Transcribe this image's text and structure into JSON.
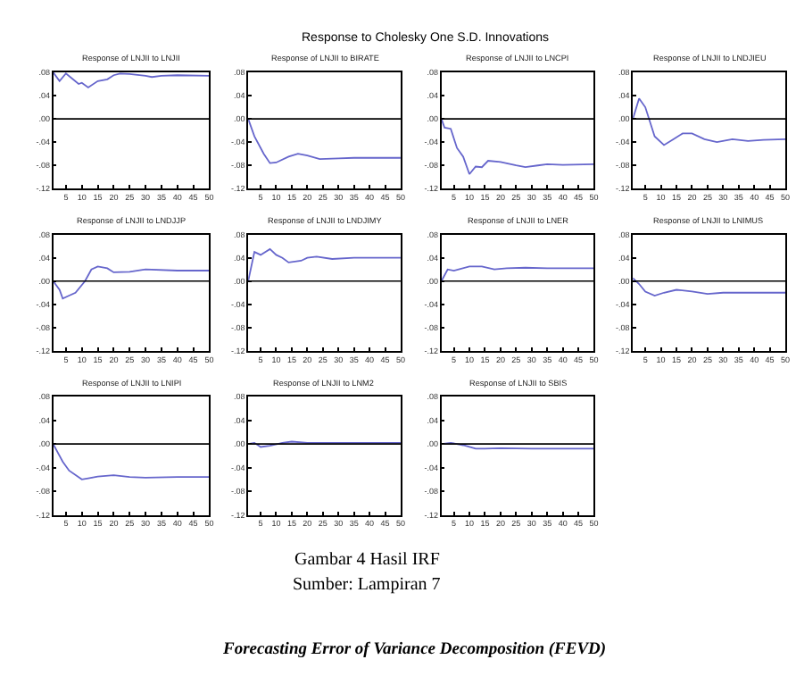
{
  "chart_data": [
    {
      "type": "other",
      "title": "Response to Cholesky One S.D. Innovations",
      "annotations": [
        "Gambar 4 Hasil IRF",
        "Sumber: Lampiran 7",
        "Forecasting Error of Variance Decomposition (FEVD)"
      ]
    },
    {
      "type": "line",
      "title": "Response of LNJII to LNJII",
      "series": [
        {
          "color": "#6666cc",
          "x": [
            1,
            3,
            5,
            9,
            10,
            12,
            15,
            18,
            20,
            22,
            25,
            30,
            32,
            35,
            40,
            50
          ],
          "values": [
            0.08,
            0.065,
            0.078,
            0.06,
            0.062,
            0.054,
            0.065,
            0.068,
            0.075,
            0.078,
            0.077,
            0.074,
            0.072,
            0.074,
            0.075,
            0.074
          ]
        }
      ],
      "xlim": [
        1,
        50
      ],
      "ylim": [
        -0.12,
        0.08
      ],
      "xticks": [
        5,
        10,
        15,
        20,
        25,
        30,
        35,
        40,
        45,
        50
      ],
      "yticks": [
        {
          "value": -0.12,
          "label": "-.12"
        },
        {
          "value": -0.08,
          "label": "-.08"
        },
        {
          "value": -0.04,
          "label": "-.04"
        },
        {
          "value": 0,
          "label": ".00"
        },
        {
          "value": 0.04,
          "label": ".04"
        },
        {
          "value": 0.08,
          "label": ".08"
        }
      ],
      "ref_lines": [
        {
          "axis": "y",
          "value": 0,
          "color": "#000000"
        }
      ],
      "grid": false,
      "marker": "none",
      "line_style": "solid"
    },
    {
      "type": "line",
      "title": "Response of LNJII to BIRATE",
      "series": [
        {
          "color": "#6666cc",
          "x": [
            1,
            3,
            6,
            8,
            10,
            14,
            17,
            20,
            24,
            30,
            35,
            50
          ],
          "values": [
            0,
            -0.03,
            -0.06,
            -0.076,
            -0.075,
            -0.065,
            -0.06,
            -0.063,
            -0.069,
            -0.068,
            -0.067,
            -0.067
          ]
        }
      ],
      "xlim": [
        1,
        50
      ],
      "ylim": [
        -0.12,
        0.08
      ],
      "xticks": [
        5,
        10,
        15,
        20,
        25,
        30,
        35,
        40,
        45,
        50
      ],
      "yticks": [
        {
          "value": -0.12,
          "label": "-.12"
        },
        {
          "value": -0.08,
          "label": "-.08"
        },
        {
          "value": -0.04,
          "label": "-.04"
        },
        {
          "value": 0,
          "label": ".00"
        },
        {
          "value": 0.04,
          "label": ".04"
        },
        {
          "value": 0.08,
          "label": ".08"
        }
      ],
      "ref_lines": [
        {
          "axis": "y",
          "value": 0,
          "color": "#000000"
        }
      ],
      "grid": false,
      "marker": "none",
      "line_style": "solid"
    },
    {
      "type": "line",
      "title": "Response of LNJII to LNCPI",
      "series": [
        {
          "color": "#6666cc",
          "x": [
            1,
            2,
            4,
            6,
            8,
            10,
            12,
            14,
            16,
            20,
            25,
            28,
            32,
            35,
            40,
            50
          ],
          "values": [
            0,
            -0.015,
            -0.017,
            -0.05,
            -0.065,
            -0.095,
            -0.082,
            -0.083,
            -0.072,
            -0.074,
            -0.08,
            -0.083,
            -0.08,
            -0.078,
            -0.079,
            -0.078
          ]
        }
      ],
      "xlim": [
        1,
        50
      ],
      "ylim": [
        -0.12,
        0.08
      ],
      "xticks": [
        5,
        10,
        15,
        20,
        25,
        30,
        35,
        40,
        45,
        50
      ],
      "yticks": [
        {
          "value": -0.12,
          "label": "-.12"
        },
        {
          "value": -0.08,
          "label": "-.08"
        },
        {
          "value": -0.04,
          "label": "-.04"
        },
        {
          "value": 0,
          "label": ".00"
        },
        {
          "value": 0.04,
          "label": ".04"
        },
        {
          "value": 0.08,
          "label": ".08"
        }
      ],
      "ref_lines": [
        {
          "axis": "y",
          "value": 0,
          "color": "#000000"
        }
      ],
      "grid": false,
      "marker": "none",
      "line_style": "solid"
    },
    {
      "type": "line",
      "title": "Response of LNJII to LNDJIEU",
      "series": [
        {
          "color": "#6666cc",
          "x": [
            1,
            3,
            5,
            8,
            11,
            14,
            17,
            20,
            24,
            28,
            33,
            38,
            43,
            50
          ],
          "values": [
            0,
            0.035,
            0.02,
            -0.03,
            -0.045,
            -0.035,
            -0.025,
            -0.025,
            -0.035,
            -0.04,
            -0.035,
            -0.038,
            -0.036,
            -0.035
          ]
        }
      ],
      "xlim": [
        1,
        50
      ],
      "ylim": [
        -0.12,
        0.08
      ],
      "xticks": [
        5,
        10,
        15,
        20,
        25,
        30,
        35,
        40,
        45,
        50
      ],
      "yticks": [
        {
          "value": -0.12,
          "label": "-.12"
        },
        {
          "value": -0.08,
          "label": "-.08"
        },
        {
          "value": -0.04,
          "label": "-.04"
        },
        {
          "value": 0,
          "label": ".00"
        },
        {
          "value": 0.04,
          "label": ".04"
        },
        {
          "value": 0.08,
          "label": ".08"
        }
      ],
      "ref_lines": [
        {
          "axis": "y",
          "value": 0,
          "color": "#000000"
        }
      ],
      "grid": false,
      "marker": "none",
      "line_style": "solid"
    },
    {
      "type": "line",
      "title": "Response of LNJII to LNDJJP",
      "series": [
        {
          "color": "#6666cc",
          "x": [
            1,
            3,
            4,
            6,
            8,
            11,
            13,
            15,
            18,
            20,
            25,
            30,
            40,
            50
          ],
          "values": [
            0,
            -0.015,
            -0.03,
            -0.025,
            -0.02,
            0,
            0.02,
            0.025,
            0.022,
            0.015,
            0.016,
            0.02,
            0.018,
            0.018
          ]
        }
      ],
      "xlim": [
        1,
        50
      ],
      "ylim": [
        -0.12,
        0.08
      ],
      "xticks": [
        5,
        10,
        15,
        20,
        25,
        30,
        35,
        40,
        45,
        50
      ],
      "yticks": [
        {
          "value": -0.12,
          "label": "-.12"
        },
        {
          "value": -0.08,
          "label": "-.08"
        },
        {
          "value": -0.04,
          "label": "-.04"
        },
        {
          "value": 0,
          "label": ".00"
        },
        {
          "value": 0.04,
          "label": ".04"
        },
        {
          "value": 0.08,
          "label": ".08"
        }
      ],
      "ref_lines": [
        {
          "axis": "y",
          "value": 0,
          "color": "#000000"
        }
      ],
      "grid": false,
      "marker": "none",
      "line_style": "solid"
    },
    {
      "type": "line",
      "title": "Response of LNJII to LNDJIMY",
      "series": [
        {
          "color": "#6666cc",
          "x": [
            1,
            3,
            5,
            8,
            10,
            12,
            14,
            18,
            20,
            23,
            28,
            35,
            50
          ],
          "values": [
            0,
            0.05,
            0.045,
            0.055,
            0.045,
            0.04,
            0.032,
            0.035,
            0.04,
            0.042,
            0.038,
            0.04,
            0.04
          ]
        }
      ],
      "xlim": [
        1,
        50
      ],
      "ylim": [
        -0.12,
        0.08
      ],
      "xticks": [
        5,
        10,
        15,
        20,
        25,
        30,
        35,
        40,
        45,
        50
      ],
      "yticks": [
        {
          "value": -0.12,
          "label": "-.12"
        },
        {
          "value": -0.08,
          "label": "-.08"
        },
        {
          "value": -0.04,
          "label": "-.04"
        },
        {
          "value": 0,
          "label": ".00"
        },
        {
          "value": 0.04,
          "label": ".04"
        },
        {
          "value": 0.08,
          "label": ".08"
        }
      ],
      "ref_lines": [
        {
          "axis": "y",
          "value": 0,
          "color": "#000000"
        }
      ],
      "grid": false,
      "marker": "none",
      "line_style": "solid"
    },
    {
      "type": "line",
      "title": "Response of LNJII to LNER",
      "series": [
        {
          "color": "#6666cc",
          "x": [
            1,
            3,
            5,
            10,
            14,
            18,
            22,
            28,
            35,
            50
          ],
          "values": [
            0,
            0.02,
            0.018,
            0.025,
            0.025,
            0.02,
            0.022,
            0.023,
            0.022,
            0.022
          ]
        }
      ],
      "xlim": [
        1,
        50
      ],
      "ylim": [
        -0.12,
        0.08
      ],
      "xticks": [
        5,
        10,
        15,
        20,
        25,
        30,
        35,
        40,
        45,
        50
      ],
      "yticks": [
        {
          "value": -0.12,
          "label": "-.12"
        },
        {
          "value": -0.08,
          "label": "-.08"
        },
        {
          "value": -0.04,
          "label": "-.04"
        },
        {
          "value": 0,
          "label": ".00"
        },
        {
          "value": 0.04,
          "label": ".04"
        },
        {
          "value": 0.08,
          "label": ".08"
        }
      ],
      "ref_lines": [
        {
          "axis": "y",
          "value": 0,
          "color": "#000000"
        }
      ],
      "grid": false,
      "marker": "none",
      "line_style": "solid"
    },
    {
      "type": "line",
      "title": "Response of LNJII to LNIMUS",
      "series": [
        {
          "color": "#6666cc",
          "x": [
            1,
            3,
            5,
            8,
            11,
            15,
            20,
            25,
            30,
            50
          ],
          "values": [
            0.005,
            -0.005,
            -0.018,
            -0.025,
            -0.02,
            -0.015,
            -0.018,
            -0.022,
            -0.02,
            -0.02
          ]
        }
      ],
      "xlim": [
        1,
        50
      ],
      "ylim": [
        -0.12,
        0.08
      ],
      "xticks": [
        5,
        10,
        15,
        20,
        25,
        30,
        35,
        40,
        45,
        50
      ],
      "yticks": [
        {
          "value": -0.12,
          "label": "-.12"
        },
        {
          "value": -0.08,
          "label": "-.08"
        },
        {
          "value": -0.04,
          "label": "-.04"
        },
        {
          "value": 0,
          "label": ".00"
        },
        {
          "value": 0.04,
          "label": ".04"
        },
        {
          "value": 0.08,
          "label": ".08"
        }
      ],
      "ref_lines": [
        {
          "axis": "y",
          "value": 0,
          "color": "#000000"
        }
      ],
      "grid": false,
      "marker": "none",
      "line_style": "solid"
    },
    {
      "type": "line",
      "title": "Response of LNJII to LNIPI",
      "series": [
        {
          "color": "#6666cc",
          "x": [
            1,
            4,
            6,
            10,
            12,
            15,
            20,
            25,
            30,
            40,
            50
          ],
          "values": [
            0,
            -0.03,
            -0.045,
            -0.06,
            -0.058,
            -0.055,
            -0.053,
            -0.056,
            -0.057,
            -0.056,
            -0.056
          ]
        }
      ],
      "xlim": [
        1,
        50
      ],
      "ylim": [
        -0.12,
        0.08
      ],
      "xticks": [
        5,
        10,
        15,
        20,
        25,
        30,
        35,
        40,
        45,
        50
      ],
      "yticks": [
        {
          "value": -0.12,
          "label": "-.12"
        },
        {
          "value": -0.08,
          "label": "-.08"
        },
        {
          "value": -0.04,
          "label": "-.04"
        },
        {
          "value": 0,
          "label": ".00"
        },
        {
          "value": 0.04,
          "label": ".04"
        },
        {
          "value": 0.08,
          "label": ".08"
        }
      ],
      "ref_lines": [
        {
          "axis": "y",
          "value": 0,
          "color": "#000000"
        }
      ],
      "grid": false,
      "marker": "none",
      "line_style": "solid"
    },
    {
      "type": "line",
      "title": "Response of LNJII to LNM2",
      "series": [
        {
          "color": "#6666cc",
          "x": [
            1,
            3,
            5,
            8,
            12,
            15,
            20,
            50
          ],
          "values": [
            0,
            0.002,
            -0.005,
            -0.003,
            0.002,
            0.004,
            0.002,
            0.002
          ]
        }
      ],
      "xlim": [
        1,
        50
      ],
      "ylim": [
        -0.12,
        0.08
      ],
      "xticks": [
        5,
        10,
        15,
        20,
        25,
        30,
        35,
        40,
        45,
        50
      ],
      "yticks": [
        {
          "value": -0.12,
          "label": "-.12"
        },
        {
          "value": -0.08,
          "label": "-.08"
        },
        {
          "value": -0.04,
          "label": "-.04"
        },
        {
          "value": 0,
          "label": ".00"
        },
        {
          "value": 0.04,
          "label": ".04"
        },
        {
          "value": 0.08,
          "label": ".08"
        }
      ],
      "ref_lines": [
        {
          "axis": "y",
          "value": 0,
          "color": "#000000"
        }
      ],
      "grid": false,
      "marker": "none",
      "line_style": "solid"
    },
    {
      "type": "line",
      "title": "Response of LNJII to SBIS",
      "series": [
        {
          "color": "#6666cc",
          "x": [
            1,
            4,
            8,
            12,
            15,
            20,
            30,
            50
          ],
          "values": [
            0,
            0.002,
            -0.002,
            -0.008,
            -0.008,
            -0.007,
            -0.008,
            -0.008
          ]
        }
      ],
      "xlim": [
        1,
        50
      ],
      "ylim": [
        -0.12,
        0.08
      ],
      "xticks": [
        5,
        10,
        15,
        20,
        25,
        30,
        35,
        40,
        45,
        50
      ],
      "yticks": [
        {
          "value": -0.12,
          "label": "-.12"
        },
        {
          "value": -0.08,
          "label": "-.08"
        },
        {
          "value": -0.04,
          "label": "-.04"
        },
        {
          "value": 0,
          "label": ".00"
        },
        {
          "value": 0.04,
          "label": ".04"
        },
        {
          "value": 0.08,
          "label": ".08"
        }
      ],
      "ref_lines": [
        {
          "axis": "y",
          "value": 0,
          "color": "#000000"
        }
      ],
      "grid": false,
      "marker": "none",
      "line_style": "solid"
    }
  ]
}
